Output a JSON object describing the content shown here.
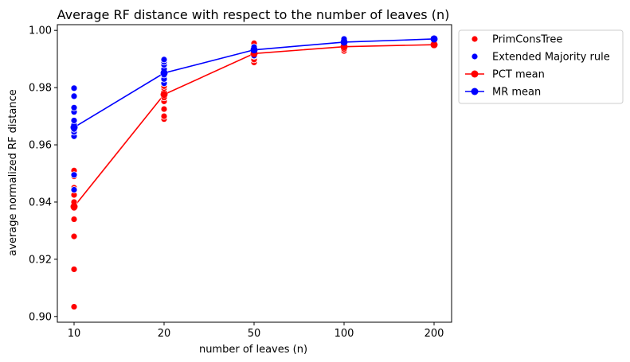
{
  "chart_data": {
    "type": "scatter",
    "title": "Average RF distance with respect to the number of leaves (n)",
    "xlabel": "number of leaves (n)",
    "ylabel": "average normalized RF distance",
    "categories": [
      "10",
      "20",
      "50",
      "100",
      "200"
    ],
    "ylim": [
      0.898,
      1.002
    ],
    "yticks": [
      "0.90",
      "0.92",
      "0.94",
      "0.96",
      "0.98",
      "1.00"
    ],
    "ytick_values": [
      0.9,
      0.92,
      0.94,
      0.96,
      0.98,
      1.0
    ],
    "grid": false,
    "legend_position": "outside-top-right",
    "series": [
      {
        "name": "PrimConsTree",
        "kind": "scatter",
        "color": "#ff0000",
        "points": [
          [
            "10",
            0.9034
          ],
          [
            "10",
            0.9165
          ],
          [
            "10",
            0.928
          ],
          [
            "10",
            0.934
          ],
          [
            "10",
            0.938
          ],
          [
            "10",
            0.94
          ],
          [
            "10",
            0.9425
          ],
          [
            "10",
            0.945
          ],
          [
            "10",
            0.949
          ],
          [
            "10",
            0.951
          ],
          [
            "20",
            0.969
          ],
          [
            "20",
            0.97
          ],
          [
            "20",
            0.9725
          ],
          [
            "20",
            0.9752
          ],
          [
            "20",
            0.9765
          ],
          [
            "20",
            0.9775
          ],
          [
            "20",
            0.9785
          ],
          [
            "20",
            0.9798
          ],
          [
            "20",
            0.9805
          ],
          [
            "50",
            0.9888
          ],
          [
            "50",
            0.9898
          ],
          [
            "50",
            0.991
          ],
          [
            "50",
            0.9925
          ],
          [
            "50",
            0.9935
          ],
          [
            "50",
            0.9945
          ],
          [
            "50",
            0.9955
          ],
          [
            "100",
            0.9928
          ],
          [
            "100",
            0.9935
          ],
          [
            "100",
            0.9942
          ],
          [
            "100",
            0.995
          ],
          [
            "100",
            0.9955
          ],
          [
            "200",
            0.9948
          ],
          [
            "200",
            0.9952
          ]
        ]
      },
      {
        "name": "Extended Majority rule",
        "kind": "scatter",
        "color": "#0000ff",
        "points": [
          [
            "10",
            0.9443
          ],
          [
            "10",
            0.9495
          ],
          [
            "10",
            0.963
          ],
          [
            "10",
            0.9645
          ],
          [
            "10",
            0.9655
          ],
          [
            "10",
            0.9665
          ],
          [
            "10",
            0.967
          ],
          [
            "10",
            0.9685
          ],
          [
            "10",
            0.9715
          ],
          [
            "10",
            0.973
          ],
          [
            "10",
            0.977
          ],
          [
            "10",
            0.9798
          ],
          [
            "20",
            0.9815
          ],
          [
            "20",
            0.983
          ],
          [
            "20",
            0.9845
          ],
          [
            "20",
            0.9855
          ],
          [
            "20",
            0.9865
          ],
          [
            "20",
            0.988
          ],
          [
            "20",
            0.989
          ],
          [
            "20",
            0.9898
          ],
          [
            "50",
            0.9912
          ],
          [
            "50",
            0.9925
          ],
          [
            "50",
            0.9935
          ],
          [
            "50",
            0.9942
          ],
          [
            "100",
            0.9945
          ],
          [
            "100",
            0.9955
          ],
          [
            "100",
            0.9962
          ],
          [
            "100",
            0.997
          ],
          [
            "200",
            0.9965
          ],
          [
            "200",
            0.9972
          ]
        ]
      },
      {
        "name": "PCT mean",
        "kind": "line",
        "color": "#ff0000",
        "values": [
          0.9384,
          0.9776,
          0.9919,
          0.9943,
          0.995
        ]
      },
      {
        "name": "MR mean",
        "kind": "line",
        "color": "#0000ff",
        "values": [
          0.9661,
          0.9851,
          0.9932,
          0.9959,
          0.997
        ]
      }
    ]
  }
}
